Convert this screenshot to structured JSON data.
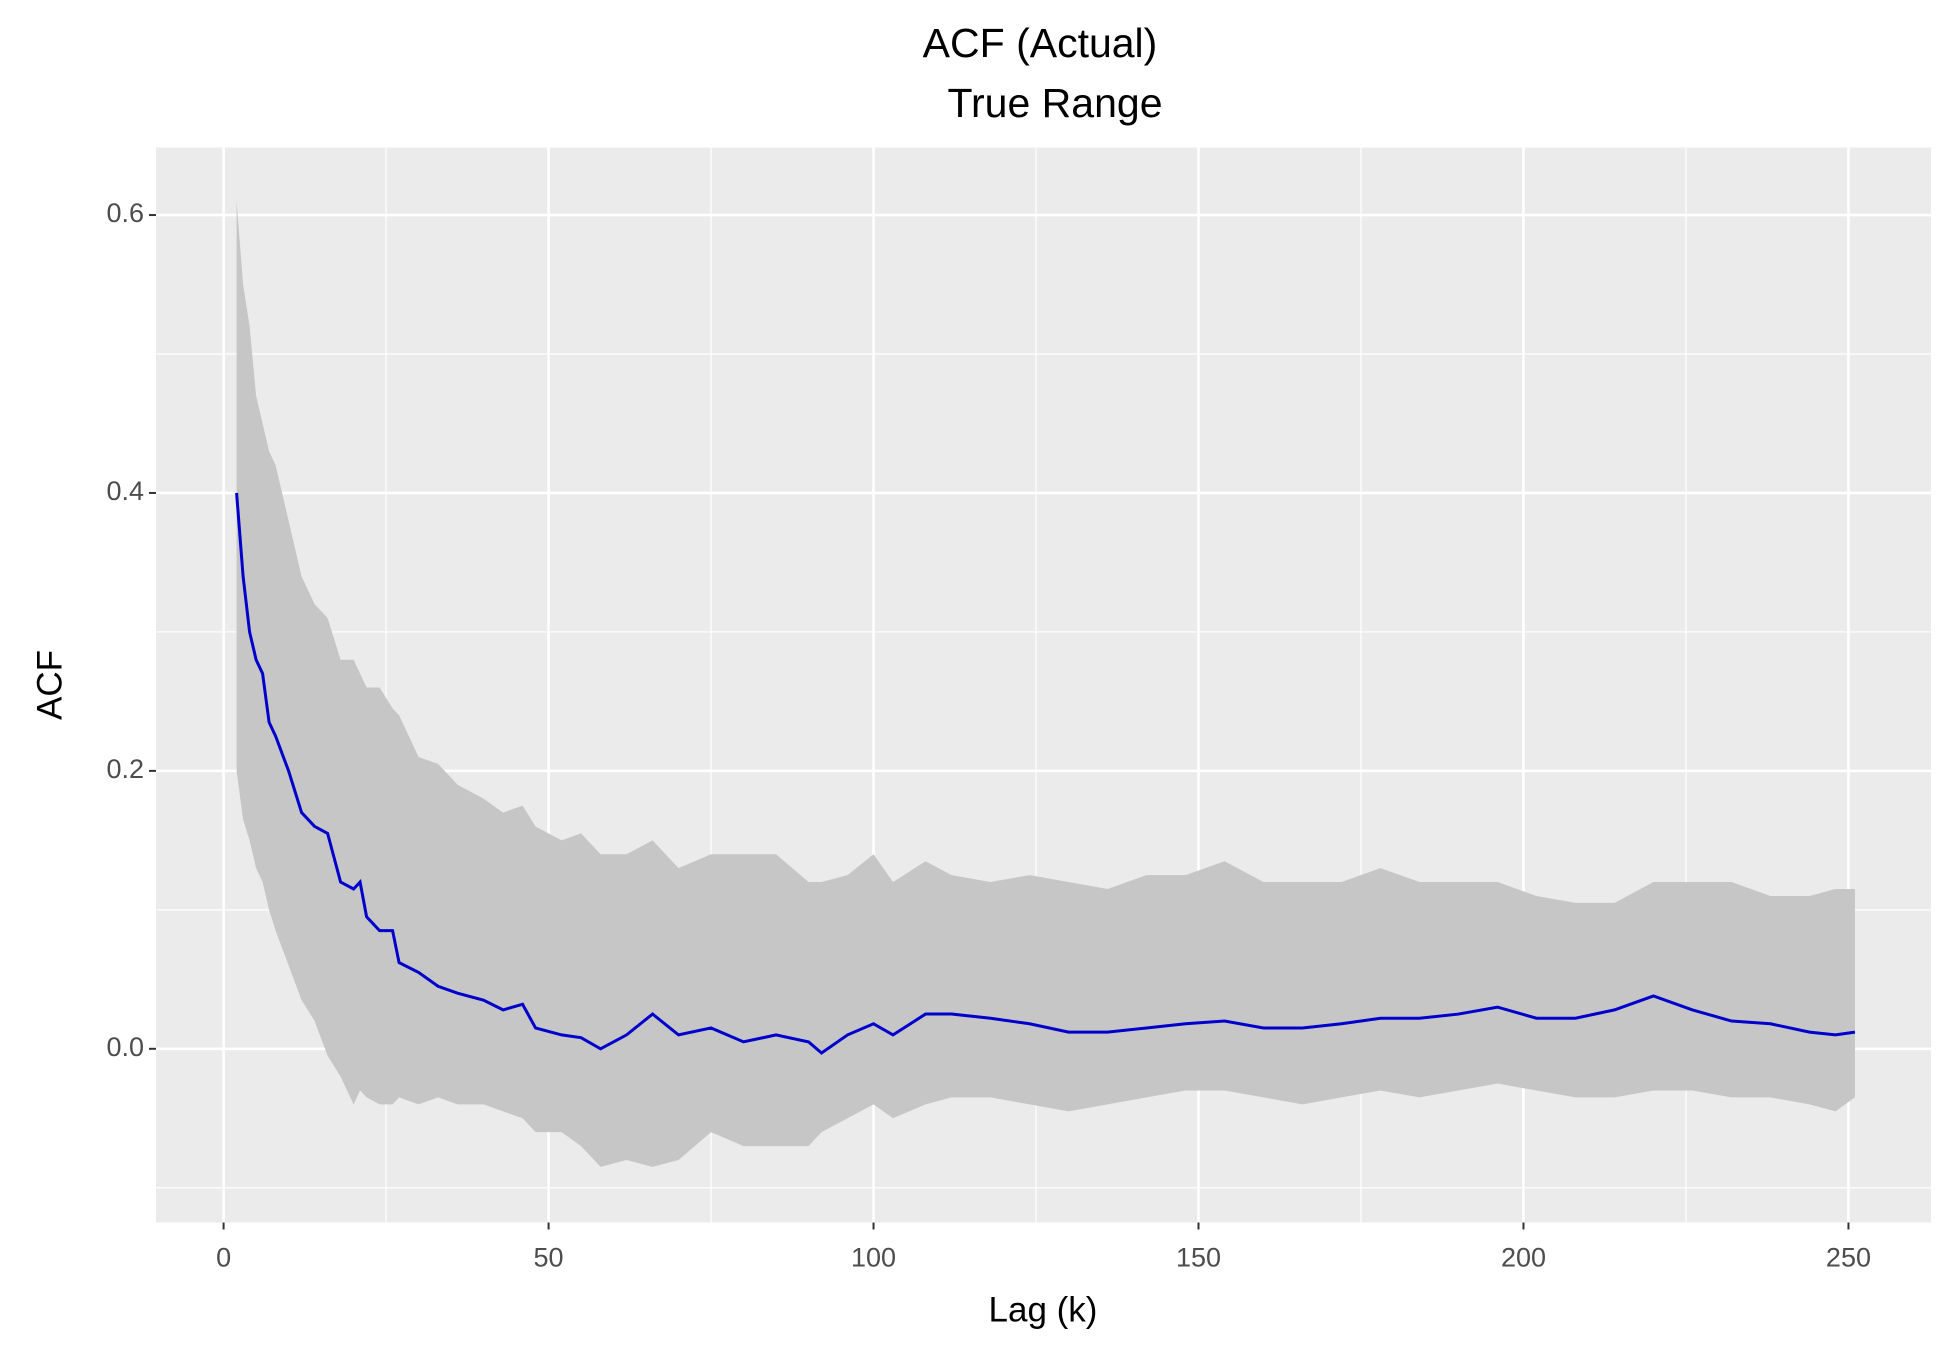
{
  "chart_data": {
    "type": "line",
    "title": "ACF (Actual)",
    "subtitle": "True Range",
    "xlabel": "Lag (k)",
    "ylabel": "ACF",
    "x": [
      2,
      3,
      4,
      5,
      6,
      7,
      8,
      10,
      12,
      14,
      16,
      18,
      20,
      21,
      22,
      24,
      26,
      27,
      30,
      33,
      36,
      40,
      43,
      46,
      48,
      52,
      55,
      58,
      62,
      66,
      70,
      75,
      80,
      85,
      90,
      92,
      96,
      100,
      103,
      108,
      112,
      118,
      124,
      130,
      136,
      142,
      148,
      154,
      160,
      166,
      172,
      178,
      184,
      190,
      196,
      202,
      208,
      214,
      220,
      226,
      232,
      238,
      244,
      248,
      251
    ],
    "series": [
      {
        "color": "#0000cc",
        "values": [
          0.4,
          0.34,
          0.3,
          0.28,
          0.27,
          0.235,
          0.225,
          0.2,
          0.17,
          0.16,
          0.155,
          0.12,
          0.115,
          0.12,
          0.095,
          0.085,
          0.085,
          0.062,
          0.055,
          0.045,
          0.04,
          0.035,
          0.028,
          0.032,
          0.015,
          0.01,
          0.008,
          0.0,
          0.01,
          0.025,
          0.01,
          0.015,
          0.005,
          0.01,
          0.005,
          -0.003,
          0.01,
          0.018,
          0.01,
          0.025,
          0.025,
          0.022,
          0.018,
          0.012,
          0.012,
          0.015,
          0.018,
          0.02,
          0.015,
          0.015,
          0.018,
          0.022,
          0.022,
          0.025,
          0.03,
          0.022,
          0.022,
          0.028,
          0.038,
          0.028,
          0.02,
          0.018,
          0.012,
          0.01,
          0.012
        ]
      }
    ],
    "band": {
      "color": "#c6c6c6",
      "upper": [
        0.61,
        0.55,
        0.52,
        0.47,
        0.45,
        0.43,
        0.42,
        0.38,
        0.34,
        0.32,
        0.31,
        0.28,
        0.28,
        0.27,
        0.26,
        0.26,
        0.245,
        0.24,
        0.21,
        0.205,
        0.19,
        0.18,
        0.17,
        0.175,
        0.16,
        0.15,
        0.155,
        0.14,
        0.14,
        0.15,
        0.13,
        0.14,
        0.14,
        0.14,
        0.12,
        0.12,
        0.125,
        0.14,
        0.12,
        0.135,
        0.125,
        0.12,
        0.125,
        0.12,
        0.115,
        0.125,
        0.125,
        0.135,
        0.12,
        0.12,
        0.12,
        0.13,
        0.12,
        0.12,
        0.12,
        0.11,
        0.105,
        0.105,
        0.12,
        0.12,
        0.12,
        0.11,
        0.11,
        0.115,
        0.115
      ],
      "lower": [
        0.2,
        0.165,
        0.15,
        0.13,
        0.12,
        0.1,
        0.085,
        0.06,
        0.035,
        0.02,
        -0.005,
        -0.02,
        -0.04,
        -0.03,
        -0.035,
        -0.04,
        -0.04,
        -0.035,
        -0.04,
        -0.035,
        -0.04,
        -0.04,
        -0.045,
        -0.05,
        -0.06,
        -0.06,
        -0.07,
        -0.085,
        -0.08,
        -0.085,
        -0.08,
        -0.06,
        -0.07,
        -0.07,
        -0.07,
        -0.06,
        -0.05,
        -0.04,
        -0.05,
        -0.04,
        -0.035,
        -0.035,
        -0.04,
        -0.045,
        -0.04,
        -0.035,
        -0.03,
        -0.03,
        -0.035,
        -0.04,
        -0.035,
        -0.03,
        -0.035,
        -0.03,
        -0.025,
        -0.03,
        -0.035,
        -0.035,
        -0.03,
        -0.03,
        -0.035,
        -0.035,
        -0.04,
        -0.045,
        -0.035
      ]
    },
    "xlim": [
      -10.4,
      262.7
    ],
    "ylim": [
      -0.125,
      0.6486
    ],
    "xticks": [
      0,
      50,
      100,
      150,
      200,
      250
    ],
    "yticks": [
      {
        "value": 0,
        "label": "0.0"
      },
      0.2,
      0.4,
      0.6
    ],
    "xminor": [
      25,
      75,
      125,
      175,
      225
    ],
    "yminor": [
      -0.1,
      0.1,
      0.3,
      0.5
    ],
    "grid": true
  }
}
